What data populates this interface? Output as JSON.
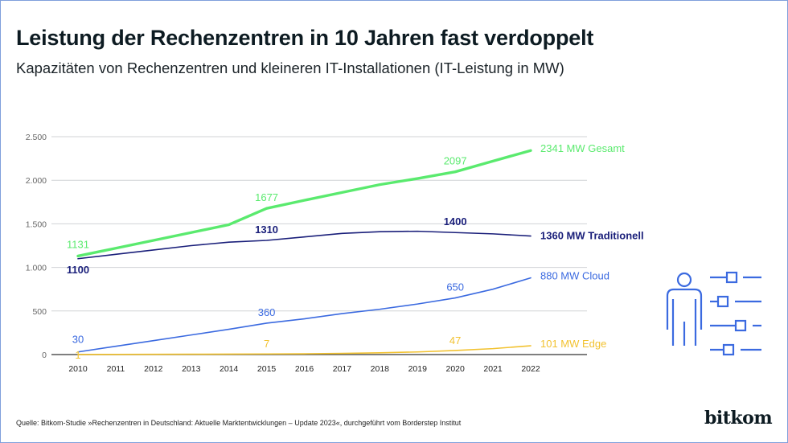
{
  "header": {
    "title": "Leistung der Rechenzentren in 10 Jahren fast verdoppelt",
    "subtitle": "Kapazitäten von Rechenzentren und kleineren IT-Installationen (IT-Leistung in MW)"
  },
  "footer": {
    "source": "Quelle: Bitkom-Studie »Rechenzentren in Deutschland: Aktuelle Marktentwicklungen – Update 2023«, durchgeführt vom Borderstep Institut",
    "logo": "bitkom"
  },
  "icon": {
    "name": "person-settings-sliders-icon",
    "color": "#3b6ae0"
  },
  "chart_data": {
    "type": "line",
    "title": "Leistung der Rechenzentren in 10 Jahren fast verdoppelt",
    "subtitle": "Kapazitäten von Rechenzentren und kleineren IT-Installationen (IT-Leistung in MW)",
    "xlabel": "",
    "ylabel": "",
    "x": [
      2010,
      2011,
      2012,
      2013,
      2014,
      2015,
      2016,
      2017,
      2018,
      2019,
      2020,
      2021,
      2022
    ],
    "x_tick_labels": [
      "2010",
      "2011",
      "2012",
      "2013",
      "2014",
      "2015",
      "2016",
      "2017",
      "2018",
      "2019",
      "2020",
      "2021",
      "2022"
    ],
    "ylim": [
      0,
      2500
    ],
    "y_ticks": [
      0,
      500,
      1000,
      1500,
      2000,
      2500
    ],
    "y_tick_labels": [
      "0",
      "500",
      "1.000",
      "1.500",
      "2.000",
      "2.500"
    ],
    "grid": true,
    "legend": "end-of-line labels, right",
    "series": [
      {
        "name": "Gesamt",
        "color": "#5aea6e",
        "end_label": "2341 MW Gesamt",
        "values": [
          1131,
          1220,
          1310,
          1400,
          1490,
          1677,
          1770,
          1860,
          1950,
          2020,
          2097,
          2220,
          2341
        ],
        "point_labels": [
          {
            "x": 2010,
            "text": "1131"
          },
          {
            "x": 2015,
            "text": "1677"
          },
          {
            "x": 2020,
            "text": "2097"
          }
        ]
      },
      {
        "name": "Traditionell",
        "color": "#1a1f7a",
        "end_label": "1360 MW Traditionell",
        "values": [
          1100,
          1150,
          1200,
          1250,
          1290,
          1310,
          1350,
          1390,
          1410,
          1415,
          1400,
          1385,
          1360
        ],
        "point_labels": [
          {
            "x": 2010,
            "text": "1100"
          },
          {
            "x": 2015,
            "text": "1310"
          },
          {
            "x": 2020,
            "text": "1400"
          }
        ]
      },
      {
        "name": "Cloud",
        "color": "#3b6ae0",
        "end_label": "880 MW Cloud",
        "values": [
          30,
          95,
          160,
          225,
          290,
          360,
          410,
          470,
          520,
          580,
          650,
          750,
          880
        ],
        "point_labels": [
          {
            "x": 2010,
            "text": "30"
          },
          {
            "x": 2015,
            "text": "360"
          },
          {
            "x": 2020,
            "text": "650"
          }
        ]
      },
      {
        "name": "Edge",
        "color": "#f2c230",
        "end_label": "101 MW Edge",
        "values": [
          1,
          2,
          3,
          4,
          5,
          7,
          9,
          13,
          20,
          30,
          47,
          68,
          101
        ],
        "point_labels": [
          {
            "x": 2010,
            "text": "1"
          },
          {
            "x": 2015,
            "text": "7"
          },
          {
            "x": 2020,
            "text": "47"
          }
        ]
      }
    ]
  }
}
